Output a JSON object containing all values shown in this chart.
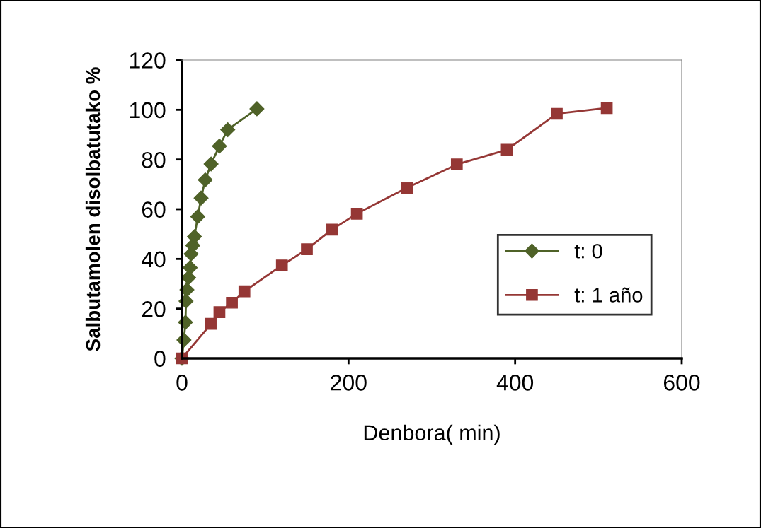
{
  "chart_data": {
    "type": "line",
    "xlabel": "Denbora( min)",
    "ylabel": "Salbutamolen disolbatutako %",
    "xlim": [
      0,
      600
    ],
    "xticks": [
      0,
      200,
      400,
      600
    ],
    "ylim": [
      0,
      120
    ],
    "yticks": [
      0,
      20,
      40,
      60,
      80,
      100,
      120
    ],
    "grid": false,
    "legend": "right",
    "series": [
      {
        "name": "t: 0",
        "color": "#4f6228",
        "marker": "diamond",
        "x": [
          0,
          2.4,
          4.2,
          4.9,
          6,
          8,
          9.8,
          11,
          13,
          15,
          19,
          23,
          28,
          35,
          45,
          55,
          90
        ],
        "values": [
          0,
          7.4,
          14.5,
          23,
          27.6,
          32.5,
          36.5,
          42,
          45.4,
          49,
          57,
          64.5,
          71.8,
          78.2,
          85.4,
          92,
          100.4
        ]
      },
      {
        "name": "t: 1 año",
        "color": "#953735",
        "marker": "square",
        "x": [
          0,
          35,
          45,
          60,
          75,
          120,
          150,
          180,
          210,
          270,
          330,
          390,
          450,
          510
        ],
        "values": [
          0,
          13.9,
          18.6,
          22.4,
          27,
          37.4,
          43.9,
          51.8,
          58.2,
          68.6,
          78,
          83.9,
          98.4,
          100.7
        ]
      }
    ]
  }
}
